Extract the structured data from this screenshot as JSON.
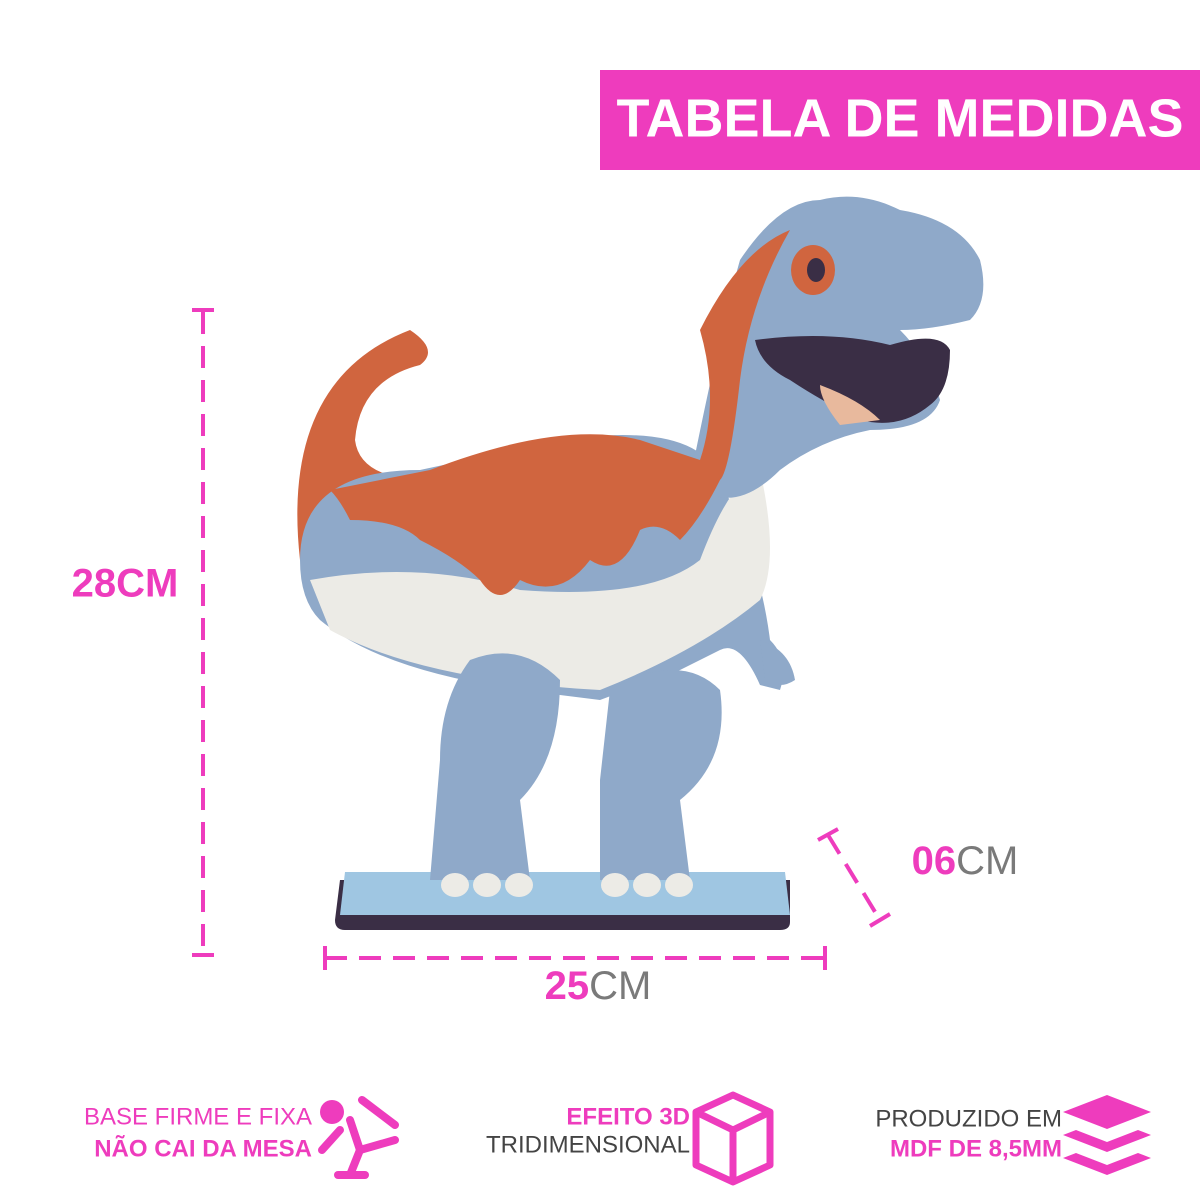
{
  "header": {
    "title": "TABELA DE MEDIDAS"
  },
  "dimensions": {
    "height": {
      "label": "28CM"
    },
    "depth": {
      "number": "06",
      "unit": "CM"
    },
    "width": {
      "number": "25",
      "unit": "CM"
    }
  },
  "features": [
    {
      "line1": "BASE FIRME E FIXA",
      "line2": "NÃO CAI DA MESA"
    },
    {
      "line1": "EFEITO 3D",
      "line2": "TRIDIMENSIONAL"
    },
    {
      "line1": "PRODUZIDO EM",
      "line2": "MDF DE 8,5MM"
    }
  ]
}
